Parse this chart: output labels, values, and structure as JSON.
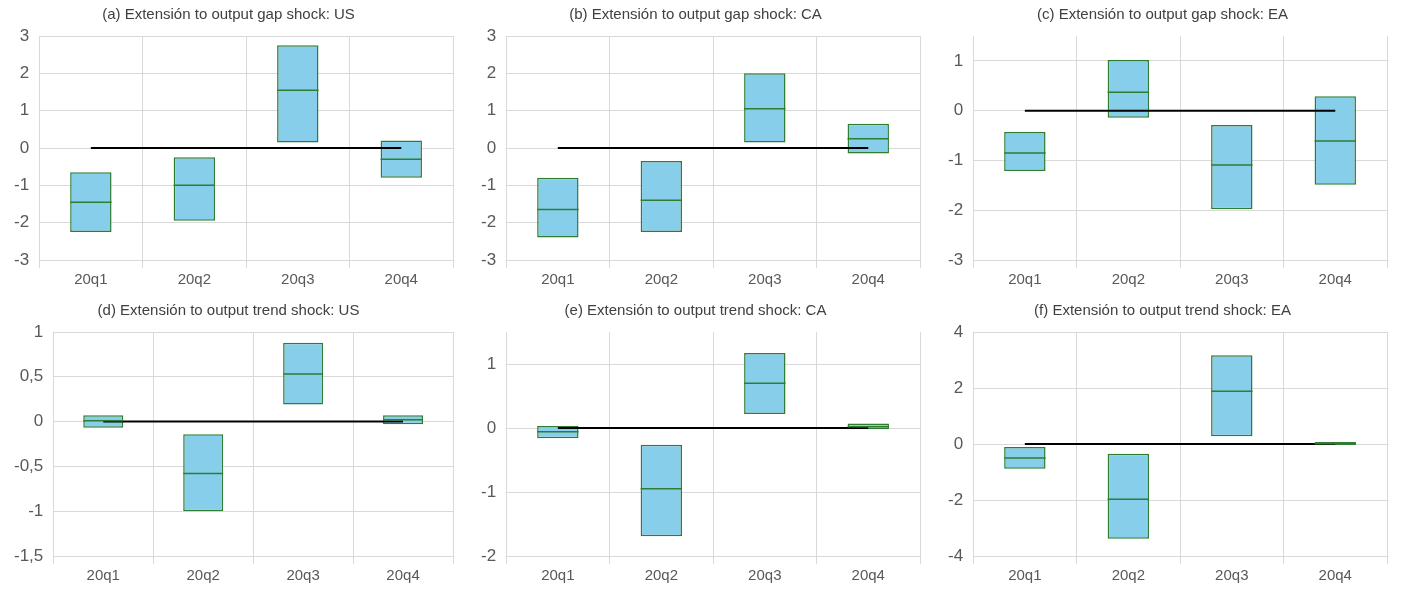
{
  "chart_data": [
    {
      "type": "box",
      "title": "(a) Extensión to output gap shock: US",
      "categories": [
        "20q1",
        "20q2",
        "20q3",
        "20q4"
      ],
      "ylim": [
        -3,
        3
      ],
      "yticks": [
        -3,
        -2,
        -1,
        0,
        1,
        2,
        3
      ],
      "grid": true,
      "series": [
        {
          "type": "box",
          "color": "#2e7d32",
          "boxes": [
            {
              "low": -2.25,
              "q1": -2.25,
              "median": -1.45,
              "q3": -0.65,
              "high": -0.65
            },
            {
              "low": -1.95,
              "q1": -1.95,
              "median": -1.0,
              "q3": -0.25,
              "high": -0.25
            },
            {
              "low": 0.15,
              "q1": 0.15,
              "median": 1.55,
              "q3": 2.75,
              "high": 2.75
            },
            {
              "low": -0.8,
              "q1": -0.8,
              "median": -0.3,
              "q3": 0.2,
              "high": 0.2
            }
          ]
        },
        {
          "type": "line",
          "color": "#000000",
          "values": [
            0,
            0,
            0,
            0
          ]
        }
      ]
    },
    {
      "type": "box",
      "title": "(b) Extensión to output gap shock: CA",
      "categories": [
        "20q1",
        "20q2",
        "20q3",
        "20q4"
      ],
      "ylim": [
        -3,
        3
      ],
      "yticks": [
        -3,
        -2,
        -1,
        0,
        1,
        2,
        3
      ],
      "grid": true,
      "series": [
        {
          "type": "box",
          "color": "#2e7d32",
          "boxes": [
            {
              "low": -2.4,
              "q1": -2.4,
              "median": -1.65,
              "q3": -0.8,
              "high": -0.8
            },
            {
              "low": -2.25,
              "q1": -2.25,
              "median": -1.4,
              "q3": -0.35,
              "high": -0.35
            },
            {
              "low": 0.15,
              "q1": 0.15,
              "median": 1.05,
              "q3": 2.0,
              "high": 2.0
            },
            {
              "low": -0.15,
              "q1": -0.15,
              "median": 0.25,
              "q3": 0.65,
              "high": 0.65
            }
          ]
        },
        {
          "type": "line",
          "color": "#000000",
          "values": [
            0,
            0,
            0,
            0
          ]
        }
      ]
    },
    {
      "type": "box",
      "title": "(c) Extensión to output gap shock: EA",
      "categories": [
        "20q1",
        "20q2",
        "20q3",
        "20q4"
      ],
      "ylim": [
        -3,
        1.5
      ],
      "yticks": [
        -3,
        -2,
        -1,
        0,
        1
      ],
      "grid": true,
      "series": [
        {
          "type": "box",
          "color": "#2e7d32",
          "boxes": [
            {
              "low": -1.21,
              "q1": -1.21,
              "median": -0.85,
              "q3": -0.43,
              "high": -0.43
            },
            {
              "low": -0.14,
              "q1": -0.14,
              "median": 0.37,
              "q3": 1.02,
              "high": 1.02
            },
            {
              "low": -1.98,
              "q1": -1.98,
              "median": -1.09,
              "q3": -0.29,
              "high": -0.29
            },
            {
              "low": -1.49,
              "q1": -1.49,
              "median": -0.61,
              "q3": 0.29,
              "high": 0.29
            }
          ]
        },
        {
          "type": "line",
          "color": "#000000",
          "values": [
            0,
            0,
            0,
            0
          ]
        }
      ]
    },
    {
      "type": "box",
      "title": "(d) Extensión to output trend shock: US",
      "categories": [
        "20q1",
        "20q2",
        "20q3",
        "20q4"
      ],
      "ylim": [
        -1.5,
        1
      ],
      "yticks": [
        {
          "value": -1.5,
          "label": "-1,5"
        },
        -1,
        {
          "value": -0.5,
          "label": "-0,5"
        },
        0,
        {
          "value": 0.5,
          "label": "0,5"
        },
        1
      ],
      "grid": true,
      "series": [
        {
          "type": "box",
          "color": "#2e7d32",
          "boxes": [
            {
              "low": -0.07,
              "q1": -0.07,
              "median": 0.01,
              "q3": 0.07,
              "high": 0.07
            },
            {
              "low": -1.0,
              "q1": -1.0,
              "median": -0.58,
              "q3": -0.14,
              "high": -0.14
            },
            {
              "low": 0.19,
              "q1": 0.19,
              "median": 0.53,
              "q3": 0.88,
              "high": 0.88
            },
            {
              "low": -0.03,
              "q1": -0.03,
              "median": 0.02,
              "q3": 0.07,
              "high": 0.07
            }
          ]
        },
        {
          "type": "line",
          "color": "#000000",
          "values": [
            0,
            0,
            0,
            0
          ]
        }
      ]
    },
    {
      "type": "box",
      "title": "(e) Extensión to output trend shock: CA",
      "categories": [
        "20q1",
        "20q2",
        "20q3",
        "20q4"
      ],
      "ylim": [
        -2,
        1.5
      ],
      "yticks": [
        -2,
        -1,
        0,
        1
      ],
      "grid": true,
      "series": [
        {
          "type": "box",
          "color": "#2e7d32",
          "boxes": [
            {
              "low": -0.16,
              "q1": -0.16,
              "median": -0.06,
              "q3": 0.03,
              "high": 0.03
            },
            {
              "low": -1.69,
              "q1": -1.69,
              "median": -0.95,
              "q3": -0.26,
              "high": -0.26
            },
            {
              "low": 0.22,
              "q1": 0.22,
              "median": 0.7,
              "q3": 1.17,
              "high": 1.17
            },
            {
              "low": -0.02,
              "q1": -0.02,
              "median": 0.02,
              "q3": 0.07,
              "high": 0.07
            }
          ]
        },
        {
          "type": "line",
          "color": "#000000",
          "values": [
            0,
            0,
            0,
            0
          ]
        }
      ]
    },
    {
      "type": "box",
      "title": "(f) Extensión to output trend shock: EA",
      "categories": [
        "20q1",
        "20q2",
        "20q3",
        "20q4"
      ],
      "ylim": [
        -4,
        4
      ],
      "yticks": [
        -4,
        -2,
        0,
        2,
        4
      ],
      "grid": true,
      "series": [
        {
          "type": "box",
          "color": "#2e7d32",
          "boxes": [
            {
              "low": -0.88,
              "q1": -0.88,
              "median": -0.5,
              "q3": -0.11,
              "high": -0.11
            },
            {
              "low": -3.38,
              "q1": -3.38,
              "median": -1.97,
              "q3": -0.35,
              "high": -0.35
            },
            {
              "low": 0.28,
              "q1": 0.28,
              "median": 1.88,
              "q3": 3.17,
              "high": 3.17
            },
            {
              "low": -0.04,
              "q1": -0.04,
              "median": 0.01,
              "q3": 0.07,
              "high": 0.07
            }
          ]
        },
        {
          "type": "line",
          "color": "#000000",
          "values": [
            0,
            0,
            0,
            0
          ]
        }
      ]
    }
  ]
}
